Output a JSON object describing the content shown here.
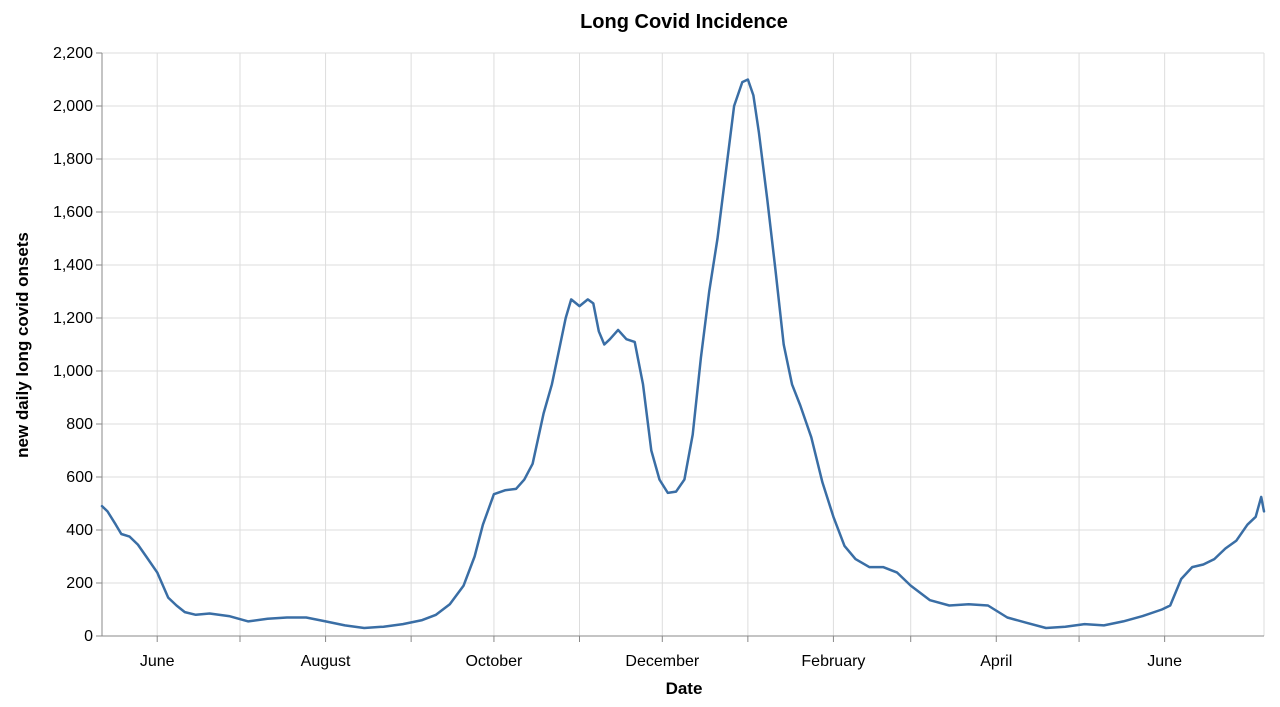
{
  "chart_data": {
    "type": "line",
    "title": "Long Covid Incidence",
    "xlabel": "Date",
    "ylabel": "new daily long covid onsets",
    "x_tick_labels": [
      "June",
      "",
      "August",
      "",
      "October",
      "",
      "December",
      "",
      "February",
      "",
      "April",
      "",
      "June"
    ],
    "y_ticks": [
      0,
      200,
      400,
      600,
      800,
      1000,
      1200,
      1400,
      1600,
      1800,
      2000,
      2200
    ],
    "y_tick_labels": [
      "0",
      "200",
      "400",
      "600",
      "800",
      "1,000",
      "1,200",
      "1,400",
      "1,600",
      "1,800",
      "2,000",
      "2,200"
    ],
    "ylim": [
      0,
      2200
    ],
    "xlim": [
      "2021-05-12",
      "2022-07-07"
    ],
    "x_ticks": [
      "2021-06-01",
      "2021-07-01",
      "2021-08-01",
      "2021-09-01",
      "2021-10-01",
      "2021-11-01",
      "2021-12-01",
      "2022-01-01",
      "2022-02-01",
      "2022-03-01",
      "2022-04-01",
      "2022-05-01",
      "2022-06-01"
    ],
    "grid": true,
    "line_color": "#3a6ea5",
    "series": [
      {
        "x": [
          "2021-05-12",
          "2021-05-14",
          "2021-05-17",
          "2021-05-19",
          "2021-05-22",
          "2021-05-25",
          "2021-05-28",
          "2021-06-01",
          "2021-06-05",
          "2021-06-08",
          "2021-06-11",
          "2021-06-15",
          "2021-06-20",
          "2021-06-27",
          "2021-07-04",
          "2021-07-11",
          "2021-07-18",
          "2021-07-25",
          "2021-08-01",
          "2021-08-08",
          "2021-08-15",
          "2021-08-22",
          "2021-08-29",
          "2021-09-05",
          "2021-09-10",
          "2021-09-15",
          "2021-09-20",
          "2021-09-24",
          "2021-09-27",
          "2021-10-01",
          "2021-10-05",
          "2021-10-09",
          "2021-10-12",
          "2021-10-15",
          "2021-10-19",
          "2021-10-22",
          "2021-10-25",
          "2021-10-27",
          "2021-10-29",
          "2021-11-01",
          "2021-11-04",
          "2021-11-06",
          "2021-11-08",
          "2021-11-10",
          "2021-11-12",
          "2021-11-15",
          "2021-11-18",
          "2021-11-21",
          "2021-11-24",
          "2021-11-27",
          "2021-11-30",
          "2021-12-03",
          "2021-12-06",
          "2021-12-09",
          "2021-12-12",
          "2021-12-15",
          "2021-12-18",
          "2021-12-21",
          "2021-12-24",
          "2021-12-27",
          "2021-12-30",
          "2022-01-01",
          "2022-01-03",
          "2022-01-05",
          "2022-01-08",
          "2022-01-11",
          "2022-01-14",
          "2022-01-17",
          "2022-01-20",
          "2022-01-24",
          "2022-01-28",
          "2022-02-01",
          "2022-02-05",
          "2022-02-09",
          "2022-02-14",
          "2022-02-19",
          "2022-02-24",
          "2022-03-01",
          "2022-03-08",
          "2022-03-15",
          "2022-03-22",
          "2022-03-29",
          "2022-04-05",
          "2022-04-12",
          "2022-04-19",
          "2022-04-26",
          "2022-05-03",
          "2022-05-10",
          "2022-05-17",
          "2022-05-24",
          "2022-05-31",
          "2022-06-03",
          "2022-06-07",
          "2022-06-11",
          "2022-06-15",
          "2022-06-19",
          "2022-06-23",
          "2022-06-27",
          "2022-07-01",
          "2022-07-04",
          "2022-07-06",
          "2022-07-07"
        ],
        "y": [
          490,
          470,
          420,
          385,
          375,
          345,
          300,
          240,
          145,
          115,
          90,
          80,
          85,
          75,
          55,
          65,
          70,
          70,
          55,
          40,
          30,
          35,
          45,
          60,
          80,
          120,
          190,
          300,
          420,
          535,
          550,
          555,
          590,
          650,
          840,
          950,
          1100,
          1200,
          1270,
          1245,
          1270,
          1255,
          1150,
          1100,
          1120,
          1155,
          1120,
          1110,
          950,
          700,
          590,
          540,
          545,
          590,
          760,
          1050,
          1300,
          1500,
          1750,
          2000,
          2090,
          2100,
          2040,
          1900,
          1650,
          1380,
          1100,
          950,
          870,
          750,
          580,
          450,
          340,
          290,
          260,
          260,
          240,
          190,
          135,
          115,
          120,
          115,
          70,
          50,
          30,
          35,
          45,
          40,
          55,
          75,
          100,
          115,
          215,
          260,
          270,
          290,
          330,
          360,
          420,
          450,
          525,
          470
        ]
      }
    ]
  }
}
